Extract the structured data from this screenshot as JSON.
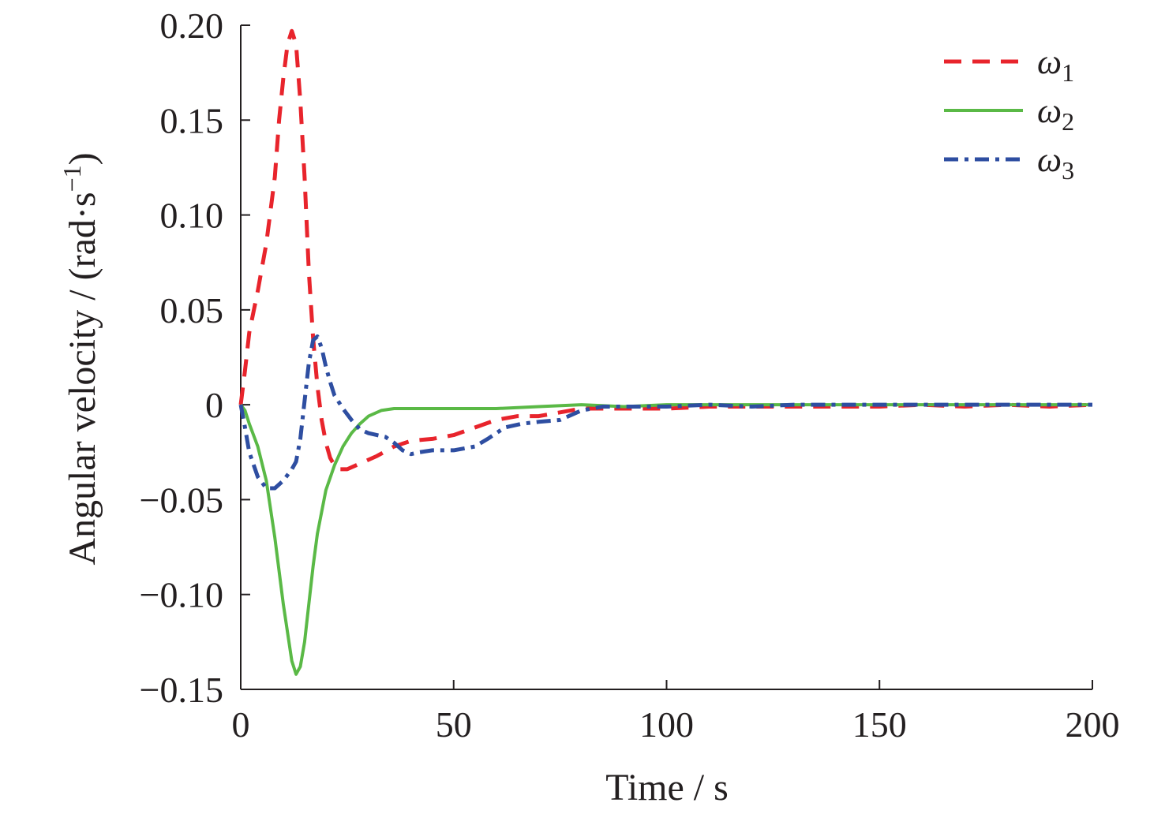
{
  "chart_data": {
    "type": "line",
    "title": "",
    "xlabel": "Time / s",
    "ylabel": "Angular velocity / (rad·s",
    "ylabel_sup": "−1",
    "ylabel_close": ")",
    "xlim": [
      0,
      200
    ],
    "ylim": [
      -0.15,
      0.2
    ],
    "x_ticks": [
      0,
      50,
      100,
      150,
      200
    ],
    "x_tick_labels": [
      "0",
      "50",
      "100",
      "150",
      "200"
    ],
    "y_ticks": [
      0.2,
      0.15,
      0.1,
      0.05,
      0,
      -0.05,
      -0.1,
      -0.15
    ],
    "y_tick_labels": [
      "0.20",
      "0.15",
      "0.10",
      "0.05",
      "0",
      "−0.05",
      "−0.10",
      "−0.15"
    ],
    "grid": false,
    "legend_position": "top-right",
    "series": [
      {
        "name": "ω",
        "name_sub": "1",
        "color": "#e8242c",
        "style": "dashed",
        "points": [
          [
            0,
            0
          ],
          [
            1,
            0.018
          ],
          [
            2,
            0.038
          ],
          [
            4,
            0.06
          ],
          [
            6,
            0.085
          ],
          [
            8,
            0.12
          ],
          [
            9,
            0.15
          ],
          [
            10,
            0.172
          ],
          [
            11,
            0.19
          ],
          [
            12,
            0.197
          ],
          [
            13,
            0.19
          ],
          [
            14,
            0.16
          ],
          [
            15,
            0.12
          ],
          [
            16,
            0.07
          ],
          [
            17,
            0.035
          ],
          [
            18,
            0.01
          ],
          [
            19,
            -0.008
          ],
          [
            20,
            -0.02
          ],
          [
            21,
            -0.028
          ],
          [
            22,
            -0.032
          ],
          [
            23,
            -0.034
          ],
          [
            25,
            -0.034
          ],
          [
            28,
            -0.031
          ],
          [
            32,
            -0.027
          ],
          [
            36,
            -0.022
          ],
          [
            40,
            -0.019
          ],
          [
            45,
            -0.018
          ],
          [
            50,
            -0.016
          ],
          [
            55,
            -0.012
          ],
          [
            60,
            -0.008
          ],
          [
            65,
            -0.006
          ],
          [
            70,
            -0.006
          ],
          [
            75,
            -0.004
          ],
          [
            80,
            -0.002
          ],
          [
            85,
            -0.002
          ],
          [
            90,
            -0.002
          ],
          [
            100,
            -0.002
          ],
          [
            110,
            -0.001
          ],
          [
            120,
            -0.001
          ],
          [
            130,
            -0.001
          ],
          [
            140,
            -0.001
          ],
          [
            150,
            -0.001
          ],
          [
            160,
            0
          ],
          [
            170,
            -0.001
          ],
          [
            180,
            0
          ],
          [
            190,
            -0.001
          ],
          [
            200,
            0
          ]
        ]
      },
      {
        "name": "ω",
        "name_sub": "2",
        "color": "#5ab946",
        "style": "solid",
        "points": [
          [
            0,
            0
          ],
          [
            1,
            -0.003
          ],
          [
            2,
            -0.01
          ],
          [
            4,
            -0.022
          ],
          [
            6,
            -0.04
          ],
          [
            8,
            -0.07
          ],
          [
            10,
            -0.105
          ],
          [
            12,
            -0.135
          ],
          [
            13,
            -0.142
          ],
          [
            14,
            -0.138
          ],
          [
            15,
            -0.125
          ],
          [
            16,
            -0.105
          ],
          [
            17,
            -0.085
          ],
          [
            18,
            -0.068
          ],
          [
            20,
            -0.045
          ],
          [
            22,
            -0.032
          ],
          [
            24,
            -0.022
          ],
          [
            26,
            -0.015
          ],
          [
            28,
            -0.01
          ],
          [
            30,
            -0.006
          ],
          [
            33,
            -0.003
          ],
          [
            36,
            -0.002
          ],
          [
            40,
            -0.002
          ],
          [
            45,
            -0.002
          ],
          [
            50,
            -0.002
          ],
          [
            60,
            -0.002
          ],
          [
            70,
            -0.001
          ],
          [
            80,
            0
          ],
          [
            90,
            -0.001
          ],
          [
            100,
            0
          ],
          [
            120,
            0
          ],
          [
            140,
            0
          ],
          [
            160,
            0
          ],
          [
            180,
            0
          ],
          [
            200,
            0
          ]
        ]
      },
      {
        "name": "ω",
        "name_sub": "3",
        "color": "#2e4ea1",
        "style": "dash-dot",
        "points": [
          [
            0,
            0
          ],
          [
            1,
            -0.012
          ],
          [
            2,
            -0.025
          ],
          [
            4,
            -0.038
          ],
          [
            6,
            -0.044
          ],
          [
            8,
            -0.044
          ],
          [
            10,
            -0.04
          ],
          [
            12,
            -0.034
          ],
          [
            13,
            -0.03
          ],
          [
            14,
            -0.018
          ],
          [
            15,
            0.002
          ],
          [
            16,
            0.022
          ],
          [
            17,
            0.034
          ],
          [
            18,
            0.036
          ],
          [
            19,
            0.03
          ],
          [
            20,
            0.02
          ],
          [
            21,
            0.012
          ],
          [
            22,
            0.005
          ],
          [
            24,
            -0.002
          ],
          [
            26,
            -0.008
          ],
          [
            28,
            -0.013
          ],
          [
            30,
            -0.015
          ],
          [
            32,
            -0.016
          ],
          [
            34,
            -0.017
          ],
          [
            36,
            -0.02
          ],
          [
            38,
            -0.024
          ],
          [
            40,
            -0.026
          ],
          [
            42,
            -0.025
          ],
          [
            45,
            -0.024
          ],
          [
            50,
            -0.024
          ],
          [
            55,
            -0.022
          ],
          [
            58,
            -0.018
          ],
          [
            62,
            -0.012
          ],
          [
            66,
            -0.01
          ],
          [
            70,
            -0.009
          ],
          [
            75,
            -0.008
          ],
          [
            80,
            -0.003
          ],
          [
            85,
            -0.001
          ],
          [
            90,
            -0.001
          ],
          [
            100,
            -0.001
          ],
          [
            110,
            0
          ],
          [
            120,
            -0.001
          ],
          [
            130,
            0
          ],
          [
            140,
            0
          ],
          [
            150,
            0
          ],
          [
            160,
            0
          ],
          [
            170,
            0
          ],
          [
            180,
            0
          ],
          [
            190,
            0
          ],
          [
            200,
            0
          ]
        ]
      }
    ]
  }
}
